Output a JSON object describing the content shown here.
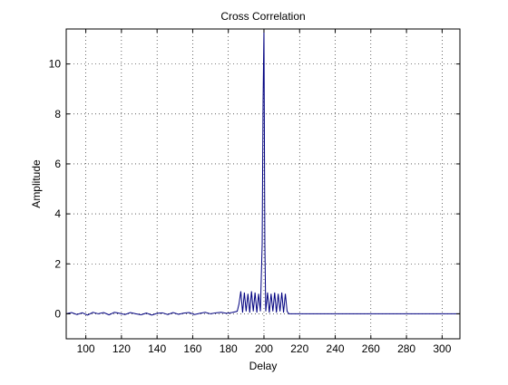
{
  "chart_data": {
    "type": "line",
    "title": "Cross Correlation",
    "xlabel": "Delay",
    "ylabel": "Amplitude",
    "xlim": [
      89,
      310
    ],
    "ylim": [
      -1,
      11.4
    ],
    "xticks": [
      100,
      120,
      140,
      160,
      180,
      200,
      220,
      240,
      260,
      280,
      300
    ],
    "yticks": [
      0,
      2,
      4,
      6,
      8,
      10
    ],
    "grid": true,
    "line_color": "#000080",
    "series": [
      {
        "x": [
          89,
          92,
          95,
          98,
          101,
          104,
          107,
          110,
          113,
          116,
          119,
          122,
          125,
          128,
          131,
          134,
          137,
          140,
          143,
          146,
          149,
          152,
          155,
          158,
          161,
          164,
          167,
          170,
          173,
          176,
          179,
          182,
          185,
          186,
          187,
          188,
          189,
          190,
          191,
          192,
          193,
          194,
          195,
          196,
          197,
          198,
          199,
          199.5,
          200,
          200.5,
          201,
          202,
          203,
          204,
          205,
          206,
          207,
          208,
          209,
          210,
          211,
          212,
          213,
          214,
          220,
          240,
          260,
          280,
          300,
          310
        ],
        "y": [
          0.0,
          0.05,
          -0.03,
          0.04,
          -0.05,
          0.06,
          0.0,
          0.05,
          -0.04,
          0.06,
          0.02,
          -0.03,
          0.05,
          0.0,
          -0.04,
          0.03,
          -0.05,
          0.02,
          0.04,
          -0.03,
          0.05,
          -0.02,
          0.03,
          0.05,
          -0.03,
          0.02,
          0.06,
          0.0,
          0.04,
          0.06,
          0.02,
          0.05,
          0.1,
          0.4,
          0.9,
          0.05,
          0.85,
          0.1,
          0.8,
          0.05,
          0.9,
          0.1,
          0.85,
          0.05,
          0.8,
          0.1,
          2.8,
          8.5,
          11.4,
          2.8,
          0.1,
          0.85,
          0.05,
          0.8,
          0.1,
          0.85,
          0.05,
          0.8,
          0.1,
          0.85,
          0.05,
          0.8,
          0.1,
          0.0,
          0.0,
          0.0,
          0.0,
          0.0,
          0.0,
          0.0
        ]
      }
    ]
  }
}
